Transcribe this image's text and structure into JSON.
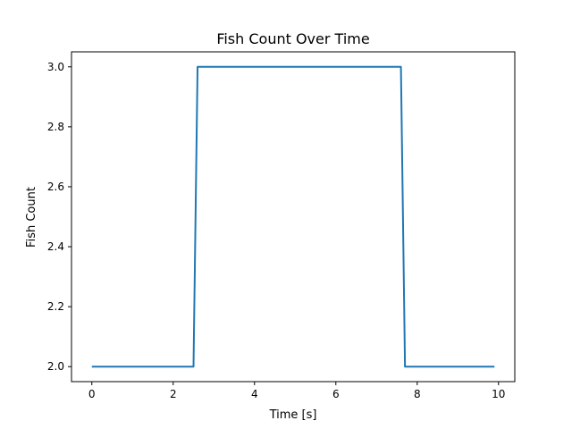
{
  "chart_data": {
    "type": "line",
    "title": "Fish Count Over Time",
    "xlabel": "Time [s]",
    "ylabel": "Fish Count",
    "xlim": [
      -0.5,
      10.4
    ],
    "ylim": [
      1.95,
      3.05
    ],
    "xticks": [
      0,
      2,
      4,
      6,
      8,
      10
    ],
    "xtick_labels": [
      "0",
      "2",
      "4",
      "6",
      "8",
      "10"
    ],
    "yticks": [
      2.0,
      2.2,
      2.4,
      2.6,
      2.8,
      3.0
    ],
    "ytick_labels": [
      "2.0",
      "2.2",
      "2.4",
      "2.6",
      "2.8",
      "3.0"
    ],
    "grid": false,
    "color": "#1f77b4",
    "series": [
      {
        "x": [
          0,
          2.5,
          2.6,
          7.6,
          7.7,
          9.9
        ],
        "y": [
          2,
          2,
          3,
          3,
          2,
          2
        ]
      }
    ]
  }
}
